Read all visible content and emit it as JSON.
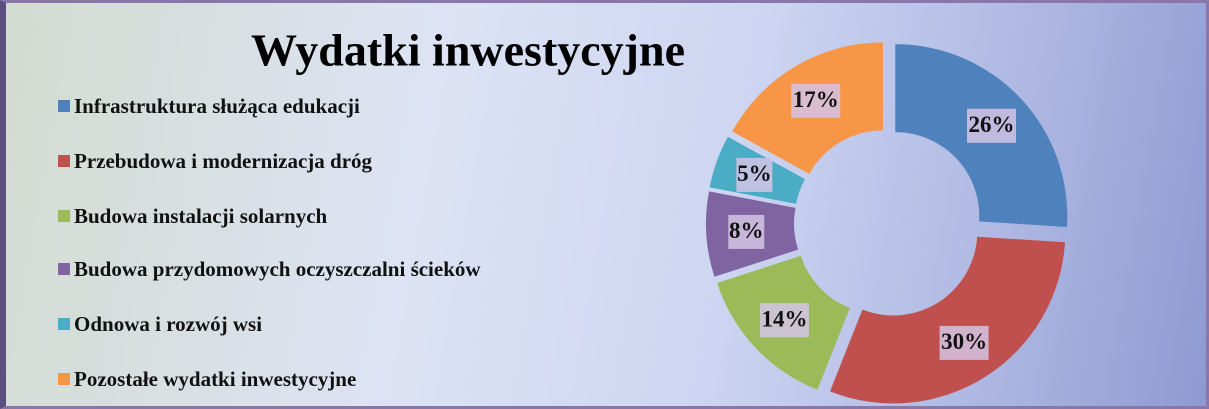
{
  "chart_data": {
    "type": "donut",
    "title": "Wydatki inwestycyjne",
    "categories": [
      "Infrastruktura służąca edukacji",
      "Przebudowa i modernizacja dróg",
      "Budowa instalacji solarnych",
      "Budowa przydomowych oczyszczalni ścieków",
      "Odnowa i rozwój wsi",
      "Pozostałe wydatki inwestycyjne"
    ],
    "values": [
      26,
      30,
      14,
      8,
      5,
      17
    ],
    "value_labels": [
      "26%",
      "30%",
      "14%",
      "8%",
      "5%",
      "17%"
    ],
    "colors": [
      "#4f81bd",
      "#c0504d",
      "#9bbb59",
      "#8064a2",
      "#4bacc6",
      "#f79646"
    ],
    "legend": "left"
  }
}
